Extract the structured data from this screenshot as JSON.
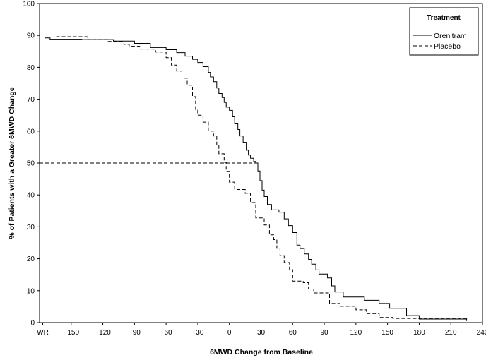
{
  "chart_data": {
    "type": "line",
    "xlabel": "6MWD Change from Baseline",
    "ylabel": "% of Patients with a Greater 6MWD Change",
    "xlim": [
      -180,
      240
    ],
    "ylim": [
      0,
      100
    ],
    "x_ticks": [
      {
        "value": -177,
        "label": "WR"
      },
      {
        "value": -150,
        "label": "−150"
      },
      {
        "value": -120,
        "label": "−120"
      },
      {
        "value": -90,
        "label": "−90"
      },
      {
        "value": -60,
        "label": "−60"
      },
      {
        "value": -30,
        "label": "−30"
      },
      {
        "value": 0,
        "label": "0"
      },
      {
        "value": 30,
        "label": "30"
      },
      {
        "value": 60,
        "label": "60"
      },
      {
        "value": 90,
        "label": "90"
      },
      {
        "value": 120,
        "label": "120"
      },
      {
        "value": 150,
        "label": "150"
      },
      {
        "value": 180,
        "label": "180"
      },
      {
        "value": 210,
        "label": "210"
      },
      {
        "value": 240,
        "label": "240"
      }
    ],
    "y_ticks": [
      0,
      10,
      20,
      30,
      40,
      50,
      60,
      70,
      80,
      90,
      100
    ],
    "grid": false,
    "legend": {
      "title": "Treatment",
      "position": "top-right"
    },
    "reference_line": {
      "y": 50,
      "x_from": -180,
      "x_to": 25,
      "style": "dashed"
    },
    "series": [
      {
        "name": "Orenitram",
        "style": "solid",
        "step": true,
        "points": [
          [
            -175,
            100
          ],
          [
            -175,
            89.2
          ],
          [
            -170,
            88.8
          ],
          [
            -140,
            88.7
          ],
          [
            -110,
            88.2
          ],
          [
            -90,
            87.5
          ],
          [
            -75,
            86.2
          ],
          [
            -60,
            85.5
          ],
          [
            -50,
            84.6
          ],
          [
            -42,
            83.5
          ],
          [
            -35,
            82.5
          ],
          [
            -30,
            81.5
          ],
          [
            -25,
            80.2
          ],
          [
            -20,
            78.4
          ],
          [
            -18,
            77
          ],
          [
            -15,
            75.5
          ],
          [
            -12,
            73.5
          ],
          [
            -10,
            71.8
          ],
          [
            -7,
            70.5
          ],
          [
            -5,
            69
          ],
          [
            -3,
            67.5
          ],
          [
            0,
            66.5
          ],
          [
            3,
            64.5
          ],
          [
            5,
            62.5
          ],
          [
            8,
            60.5
          ],
          [
            10,
            58.5
          ],
          [
            13,
            56.5
          ],
          [
            16,
            54
          ],
          [
            18,
            52.5
          ],
          [
            20,
            51.5
          ],
          [
            23,
            50.5
          ],
          [
            25,
            50
          ],
          [
            27,
            47.5
          ],
          [
            29,
            44.5
          ],
          [
            31,
            41.5
          ],
          [
            33,
            39.5
          ],
          [
            36,
            37
          ],
          [
            40,
            35.3
          ],
          [
            47,
            34.6
          ],
          [
            52,
            32.5
          ],
          [
            56,
            30.4
          ],
          [
            60,
            28.2
          ],
          [
            64,
            24.3
          ],
          [
            67,
            23.2
          ],
          [
            71,
            21.5
          ],
          [
            75,
            19.8
          ],
          [
            78,
            18.3
          ],
          [
            82,
            16.5
          ],
          [
            85,
            15.2
          ],
          [
            93,
            14
          ],
          [
            97,
            11.5
          ],
          [
            100,
            9.6
          ],
          [
            108,
            8
          ],
          [
            128,
            7
          ],
          [
            142,
            6
          ],
          [
            152,
            4.5
          ],
          [
            168,
            2.2
          ],
          [
            180,
            1.1
          ],
          [
            225,
            0.5
          ]
        ]
      },
      {
        "name": "Placebo",
        "style": "dashed",
        "step": true,
        "points": [
          [
            -175,
            100
          ],
          [
            -175,
            89.5
          ],
          [
            -165,
            89.6
          ],
          [
            -135,
            88.7
          ],
          [
            -115,
            88.1
          ],
          [
            -100,
            87.2
          ],
          [
            -95,
            86.6
          ],
          [
            -85,
            85.7
          ],
          [
            -70,
            84.8
          ],
          [
            -60,
            83
          ],
          [
            -55,
            80.7
          ],
          [
            -50,
            78.8
          ],
          [
            -45,
            76.6
          ],
          [
            -40,
            74.4
          ],
          [
            -35,
            70.8
          ],
          [
            -32,
            66.6
          ],
          [
            -30,
            65
          ],
          [
            -25,
            62.8
          ],
          [
            -20,
            60
          ],
          [
            -15,
            58.5
          ],
          [
            -12,
            55.6
          ],
          [
            -10,
            52.9
          ],
          [
            -5,
            50.2
          ],
          [
            -3,
            47.4
          ],
          [
            0,
            44
          ],
          [
            5,
            41.7
          ],
          [
            15,
            40.5
          ],
          [
            20,
            37.6
          ],
          [
            25,
            32.8
          ],
          [
            33,
            30.6
          ],
          [
            38,
            27.5
          ],
          [
            42,
            26
          ],
          [
            45,
            23.3
          ],
          [
            48,
            21
          ],
          [
            52,
            18.8
          ],
          [
            57,
            16.6
          ],
          [
            60,
            13
          ],
          [
            70,
            12.5
          ],
          [
            75,
            10.5
          ],
          [
            80,
            9.3
          ],
          [
            95,
            6
          ],
          [
            105,
            5.1
          ],
          [
            120,
            4
          ],
          [
            130,
            2.8
          ],
          [
            142,
            1.6
          ],
          [
            155,
            1.3
          ],
          [
            180,
            1.2
          ],
          [
            225,
            0.9
          ]
        ]
      }
    ]
  }
}
